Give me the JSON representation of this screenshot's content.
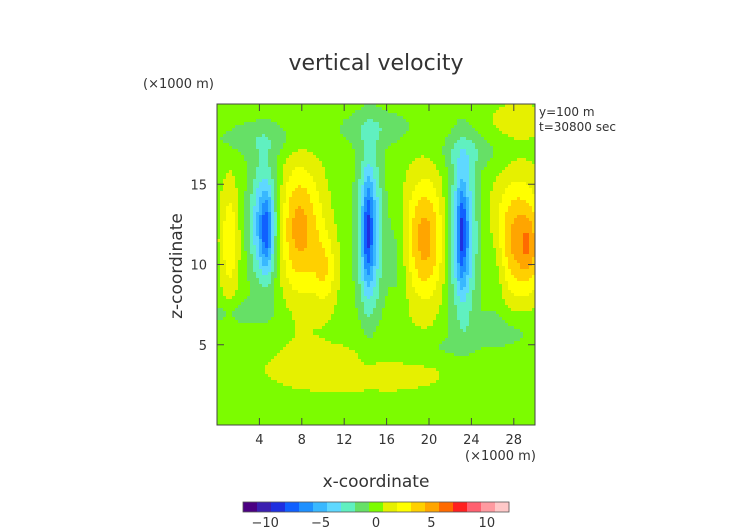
{
  "chart_data": {
    "type": "heatmap",
    "title": "vertical velocity",
    "xlabel": "x-coordinate",
    "ylabel": "z-coordinate",
    "x_unit": "(×1000 m)",
    "y_unit": "(×1000 m)",
    "info": [
      "y=100 m",
      "t=30800 sec"
    ],
    "xlim": [
      0,
      30
    ],
    "ylim": [
      0,
      20
    ],
    "x_ticks": [
      4,
      8,
      12,
      16,
      20,
      24,
      28
    ],
    "y_ticks": [
      5,
      10,
      15
    ],
    "colorbar": {
      "range": [
        -12,
        12
      ],
      "ticks": [
        -10,
        -5,
        0,
        5,
        10
      ],
      "colors": [
        "#4b0082",
        "#3b1fb0",
        "#1f2fe0",
        "#1060ff",
        "#1e90ff",
        "#39b8ff",
        "#5fd8ff",
        "#60f0c0",
        "#66e066",
        "#7cfc00",
        "#e6f000",
        "#ffff00",
        "#ffd000",
        "#ffa500",
        "#ff6a00",
        "#ff2020",
        "#ff6070",
        "#ff9aa0",
        "#ffc8c8"
      ]
    },
    "features": [
      {
        "kind": "updraft",
        "x": 1.2,
        "z": 11.5,
        "sx": 0.6,
        "sz": 2.5,
        "amp": 3
      },
      {
        "kind": "downdraft",
        "x": 4.5,
        "z": 12.5,
        "sx": 0.95,
        "sz": 2.6,
        "amp": -6
      },
      {
        "kind": "downdraft",
        "x": 4.7,
        "z": 11.8,
        "sx": 0.35,
        "sz": 1.5,
        "amp": -3
      },
      {
        "kind": "updraft",
        "x": 7.8,
        "z": 12.2,
        "sx": 1.5,
        "sz": 2.8,
        "amp": 5
      },
      {
        "kind": "updraft",
        "x": 10.2,
        "z": 9.6,
        "sx": 0.8,
        "sz": 1.6,
        "amp": 2.5
      },
      {
        "kind": "downdraft",
        "x": 14.4,
        "z": 12,
        "sx": 0.8,
        "sz": 3.4,
        "amp": -6
      },
      {
        "kind": "downdraft",
        "x": 14.2,
        "z": 12,
        "sx": 0.3,
        "sz": 2.2,
        "amp": -3
      },
      {
        "kind": "updraft",
        "x": 19.6,
        "z": 11.6,
        "sx": 1.3,
        "sz": 2.7,
        "amp": 5
      },
      {
        "kind": "downdraft",
        "x": 23.2,
        "z": 11.8,
        "sx": 0.9,
        "sz": 3.4,
        "amp": -6
      },
      {
        "kind": "downdraft",
        "x": 23.1,
        "z": 12,
        "sx": 0.3,
        "sz": 2.2,
        "amp": -3
      },
      {
        "kind": "updraft",
        "x": 28.3,
        "z": 11.6,
        "sx": 1.6,
        "sz": 2.6,
        "amp": 5
      },
      {
        "kind": "updraft",
        "x": 29.5,
        "z": 11,
        "sx": 0.6,
        "sz": 1.5,
        "amp": 2
      },
      {
        "kind": "downdraft",
        "x": 26.3,
        "z": 10,
        "sx": 0.8,
        "sz": 2.2,
        "amp": -1.5
      },
      {
        "kind": "downdraft",
        "x": 17,
        "z": 10.5,
        "sx": 0.7,
        "sz": 2.2,
        "amp": -1.3
      },
      {
        "kind": "weak",
        "x": 4,
        "z": 17.8,
        "sx": 3,
        "sz": 0.8,
        "amp": -1.4
      },
      {
        "kind": "weak",
        "x": 15,
        "z": 18.5,
        "sx": 2.5,
        "sz": 0.8,
        "amp": -1.5
      },
      {
        "kind": "weak",
        "x": 24,
        "z": 17,
        "sx": 2.2,
        "sz": 0.8,
        "amp": -1.4
      },
      {
        "kind": "weak",
        "x": 13,
        "z": 3.5,
        "sx": 9,
        "sz": 1.6,
        "amp": 1
      },
      {
        "kind": "weak",
        "x": 2,
        "z": 7,
        "sx": 2.5,
        "sz": 0.6,
        "amp": -1.3
      },
      {
        "kind": "weak",
        "x": 27,
        "z": 5.8,
        "sx": 3,
        "sz": 0.9,
        "amp": -1.3
      },
      {
        "kind": "weak",
        "x": 20,
        "z": 4.8,
        "sx": 3,
        "sz": 0.6,
        "amp": -1.2
      },
      {
        "kind": "weak",
        "x": 28.5,
        "z": 19,
        "sx": 2,
        "sz": 0.8,
        "amp": 1.4
      }
    ]
  }
}
